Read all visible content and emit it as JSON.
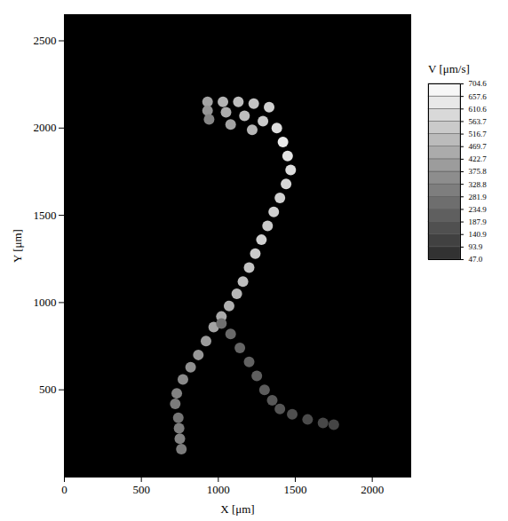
{
  "chart_data": {
    "type": "scatter",
    "xlabel": "X [μm]",
    "ylabel": "Y [μm]",
    "xlim": [
      0,
      2250
    ],
    "ylim": [
      0,
      2650
    ],
    "xticks": [
      0,
      500,
      1000,
      1500,
      2000
    ],
    "yticks": [
      500,
      1000,
      1500,
      2000,
      2500
    ],
    "x": [
      930,
      1030,
      1130,
      1230,
      1330,
      930,
      1050,
      1170,
      1290,
      940,
      1080,
      1220,
      1380,
      1420,
      1450,
      1470,
      1440,
      1400,
      1360,
      1320,
      1280,
      1240,
      1200,
      1160,
      1120,
      1070,
      1020,
      970,
      920,
      870,
      820,
      770,
      730,
      720,
      740,
      745,
      750,
      760,
      1020,
      1080,
      1140,
      1200,
      1250,
      1300,
      1350,
      1400,
      1480,
      1580,
      1680,
      1750
    ],
    "y": [
      2150,
      2150,
      2150,
      2140,
      2120,
      2100,
      2090,
      2070,
      2040,
      2050,
      2020,
      1990,
      2000,
      1920,
      1840,
      1760,
      1680,
      1600,
      1520,
      1440,
      1360,
      1280,
      1200,
      1120,
      1050,
      980,
      920,
      860,
      780,
      700,
      630,
      560,
      480,
      420,
      340,
      280,
      220,
      160,
      880,
      820,
      740,
      660,
      580,
      500,
      440,
      390,
      360,
      330,
      310,
      300
    ],
    "values": [
      420,
      470,
      500,
      520,
      560,
      380,
      450,
      500,
      540,
      330,
      420,
      480,
      600,
      640,
      620,
      600,
      580,
      560,
      560,
      540,
      560,
      540,
      520,
      500,
      480,
      460,
      440,
      420,
      400,
      380,
      360,
      340,
      320,
      300,
      280,
      300,
      320,
      300,
      260,
      240,
      230,
      220,
      210,
      200,
      190,
      180,
      160,
      150,
      140,
      130
    ],
    "colorbar": {
      "title": "V [μm/s]",
      "range": [
        47,
        704.6
      ],
      "ticks": [
        704.6,
        657.6,
        610.6,
        563.7,
        516.7,
        469.7,
        422.7,
        375.8,
        328.8,
        281.9,
        234.9,
        187.9,
        140.9,
        93.9,
        {
          "value": 47,
          "label": "47.0"
        }
      ]
    }
  }
}
